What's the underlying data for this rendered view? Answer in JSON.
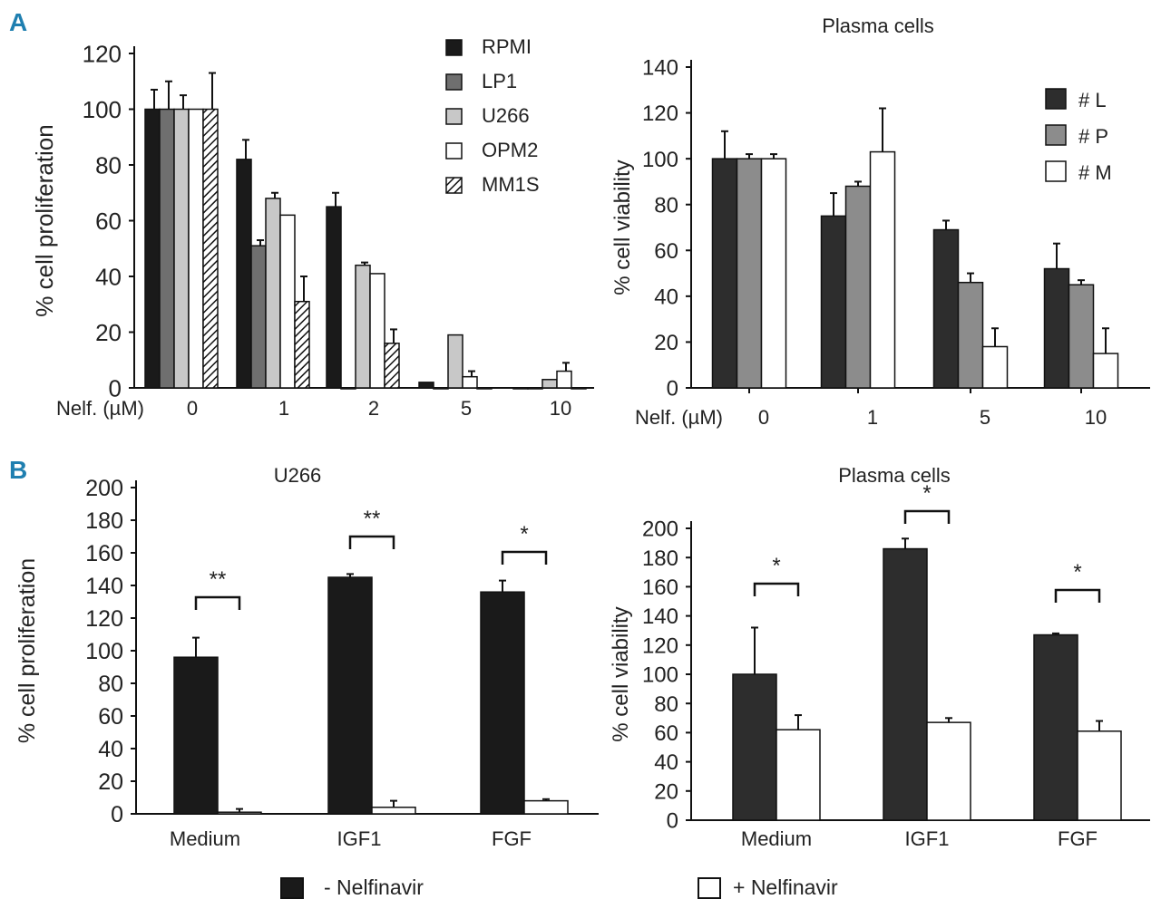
{
  "panel_labels": [
    "A",
    "B"
  ],
  "colors": {
    "black": "#1a1a1a",
    "dark_gray": "#6f6f6f",
    "light_gray": "#c8c8c8",
    "white": "#ffffff",
    "plasma_dark": "#2d2d2d",
    "plasma_gray": "#8c8c8c",
    "panel_letter": "#1f7fb0"
  },
  "chart_data": [
    {
      "id": "A1",
      "type": "bar",
      "title": "",
      "xlabel": "Nelf. (µM)",
      "ylabel": "% cell proliferation",
      "ylim": [
        0,
        120
      ],
      "yticks": [
        0,
        20,
        40,
        60,
        80,
        100,
        120
      ],
      "categories": [
        "0",
        "1",
        "2",
        "5",
        "10"
      ],
      "legend_position": "top-right",
      "series": [
        {
          "name": "RPMI",
          "fill": "black",
          "values": [
            100,
            82,
            65,
            2,
            0
          ],
          "errors": [
            7,
            7,
            5,
            0,
            0
          ]
        },
        {
          "name": "LP1",
          "fill": "dark_gray",
          "values": [
            100,
            51,
            0,
            0,
            0
          ],
          "errors": [
            10,
            2,
            1,
            0,
            0
          ]
        },
        {
          "name": "U266",
          "fill": "light_gray",
          "values": [
            100,
            68,
            44,
            19,
            3
          ],
          "errors": [
            5,
            2,
            1,
            0,
            0
          ]
        },
        {
          "name": "OPM2",
          "fill": "white",
          "values": [
            100,
            62,
            41,
            4,
            6
          ],
          "errors": [
            0,
            0,
            0,
            2,
            3
          ]
        },
        {
          "name": "MM1S",
          "fill": "hatched",
          "values": [
            100,
            31,
            16,
            0,
            0
          ],
          "errors": [
            13,
            9,
            5,
            0,
            0
          ]
        }
      ]
    },
    {
      "id": "A2",
      "type": "bar",
      "title": "Plasma cells",
      "xlabel": "Nelf. (µM)",
      "ylabel": "% cell viability",
      "ylim": [
        0,
        140
      ],
      "yticks": [
        0,
        20,
        40,
        60,
        80,
        100,
        120,
        140
      ],
      "categories": [
        "0",
        "1",
        "5",
        "10"
      ],
      "legend_position": "top-right",
      "series": [
        {
          "name": "# L",
          "fill": "plasma_dark",
          "values": [
            100,
            75,
            69,
            52
          ],
          "errors": [
            12,
            10,
            4,
            11
          ]
        },
        {
          "name": "# P",
          "fill": "plasma_gray",
          "values": [
            100,
            88,
            46,
            45
          ],
          "errors": [
            2,
            2,
            4,
            2
          ]
        },
        {
          "name": "# M",
          "fill": "white",
          "values": [
            100,
            103,
            18,
            15
          ],
          "errors": [
            2,
            19,
            8,
            11
          ]
        }
      ]
    },
    {
      "id": "B1",
      "type": "bar",
      "title": "U266",
      "xlabel": "",
      "ylabel": "% cell proliferation",
      "ylim": [
        0,
        200
      ],
      "yticks": [
        0,
        20,
        40,
        60,
        80,
        100,
        120,
        140,
        160,
        180,
        200
      ],
      "categories": [
        "Medium",
        "IGF1",
        "FGF"
      ],
      "series": [
        {
          "name": "- Nelfinavir",
          "fill": "black",
          "values": [
            96,
            145,
            136
          ],
          "errors": [
            12,
            2,
            7
          ]
        },
        {
          "name": "+ Nelfinavir",
          "fill": "white",
          "values": [
            1,
            4,
            8
          ],
          "errors": [
            2,
            4,
            1
          ]
        }
      ],
      "significance": [
        "**",
        "**",
        "*"
      ]
    },
    {
      "id": "B2",
      "type": "bar",
      "title": "Plasma cells",
      "xlabel": "",
      "ylabel": "% cell viability",
      "ylim": [
        0,
        200
      ],
      "yticks": [
        0,
        20,
        40,
        60,
        80,
        100,
        120,
        140,
        160,
        180,
        200
      ],
      "categories": [
        "Medium",
        "IGF1",
        "FGF"
      ],
      "series": [
        {
          "name": "- Nelfinavir",
          "fill": "plasma_dark",
          "values": [
            100,
            186,
            127
          ],
          "errors": [
            32,
            7,
            1
          ]
        },
        {
          "name": "+ Nelfinavir",
          "fill": "white",
          "values": [
            62,
            67,
            61
          ],
          "errors": [
            10,
            3,
            7
          ]
        }
      ],
      "significance": [
        "*",
        "*",
        "*"
      ]
    }
  ],
  "bottom_legend": [
    {
      "label": "- Nelfinavir",
      "fill": "black"
    },
    {
      "label": "+ Nelfinavir",
      "fill": "white"
    }
  ]
}
